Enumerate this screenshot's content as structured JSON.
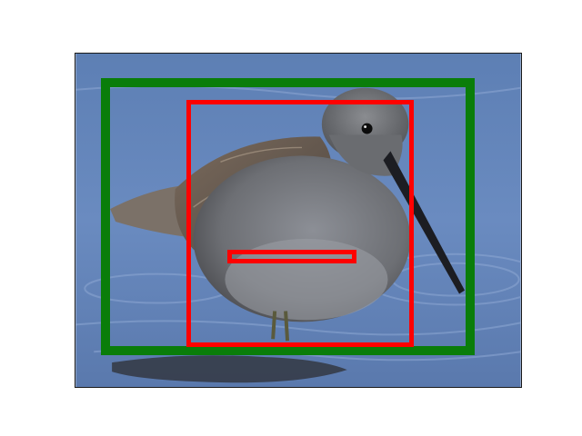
{
  "image": {
    "subject": "bird",
    "background": "water"
  },
  "colors": {
    "frame_green": "#0a7d0a",
    "box_red": "#ff0000",
    "water": "#5f82b9",
    "page_background": "#ffffff"
  },
  "overlays": [
    {
      "name": "outer-box",
      "color": "green"
    },
    {
      "name": "inner-box",
      "color": "red"
    },
    {
      "name": "strip-box",
      "color": "red"
    }
  ]
}
